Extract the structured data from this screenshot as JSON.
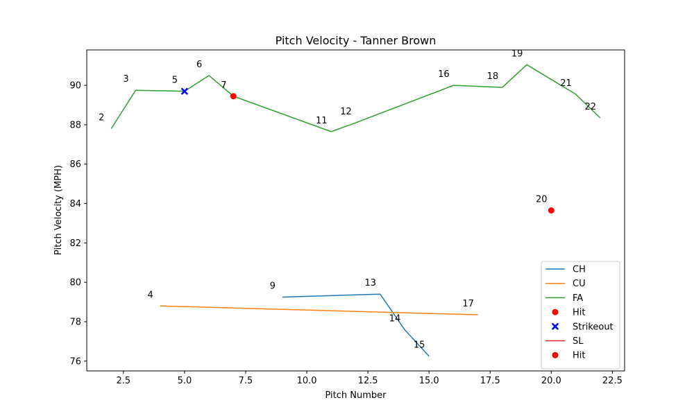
{
  "chart_data": {
    "type": "line",
    "title": "Pitch Velocity - Tanner Brown",
    "xlabel": "Pitch Number",
    "ylabel": "Pitch Velocity (MPH)",
    "xlim": [
      1.0,
      23.0
    ],
    "ylim": [
      75.5,
      91.8
    ],
    "xticks": [
      2.5,
      5.0,
      7.5,
      10.0,
      12.5,
      15.0,
      17.5,
      20.0,
      22.5
    ],
    "xtick_labels": [
      "2.5",
      "5.0",
      "7.5",
      "10.0",
      "12.5",
      "15.0",
      "17.5",
      "20.0",
      "22.5"
    ],
    "yticks": [
      76,
      78,
      80,
      82,
      84,
      86,
      88,
      90
    ],
    "ytick_labels": [
      "76",
      "78",
      "80",
      "82",
      "84",
      "86",
      "88",
      "90"
    ],
    "grid": false,
    "legend_position": "lower right",
    "series": [
      {
        "name": "CH",
        "kind": "line",
        "color": "#1f77b4",
        "x": [
          9,
          13,
          14,
          15
        ],
        "y": [
          79.25,
          79.4,
          77.6,
          76.25
        ]
      },
      {
        "name": "CU",
        "kind": "line",
        "color": "#ff7f0e",
        "x": [
          4,
          17
        ],
        "y": [
          78.8,
          78.35
        ]
      },
      {
        "name": "FA",
        "kind": "line",
        "color": "#2ca02c",
        "x": [
          2,
          3,
          5,
          6,
          7,
          11,
          12,
          16,
          18,
          19,
          21,
          22
        ],
        "y": [
          87.8,
          89.75,
          89.7,
          90.5,
          89.45,
          87.65,
          88.1,
          90.0,
          89.9,
          91.05,
          89.55,
          88.35
        ]
      },
      {
        "name": "Hit",
        "kind": "scatter",
        "marker": "circle",
        "color": "#ff0000",
        "x": [
          7
        ],
        "y": [
          89.45
        ]
      },
      {
        "name": "Strikeout",
        "kind": "scatter",
        "marker": "x",
        "color": "#0000ff",
        "x": [
          5
        ],
        "y": [
          89.7
        ]
      },
      {
        "name": "SL",
        "kind": "line",
        "color": "#d62728",
        "x": [
          20
        ],
        "y": [
          83.65
        ]
      },
      {
        "name": "Hit",
        "kind": "scatter",
        "marker": "circle",
        "color": "#ff0000",
        "x": [
          20
        ],
        "y": [
          83.65
        ]
      }
    ],
    "annotations": [
      {
        "text": "2",
        "x": 2,
        "y": 87.8
      },
      {
        "text": "3",
        "x": 3,
        "y": 89.75
      },
      {
        "text": "4",
        "x": 4,
        "y": 78.8
      },
      {
        "text": "5",
        "x": 5,
        "y": 89.7
      },
      {
        "text": "6",
        "x": 6,
        "y": 90.5
      },
      {
        "text": "7",
        "x": 7,
        "y": 89.45
      },
      {
        "text": "9",
        "x": 9,
        "y": 79.25
      },
      {
        "text": "11",
        "x": 11,
        "y": 87.65
      },
      {
        "text": "12",
        "x": 12,
        "y": 88.1
      },
      {
        "text": "13",
        "x": 13,
        "y": 79.4
      },
      {
        "text": "14",
        "x": 14,
        "y": 77.6
      },
      {
        "text": "15",
        "x": 15,
        "y": 76.25
      },
      {
        "text": "16",
        "x": 16,
        "y": 90.0
      },
      {
        "text": "17",
        "x": 17,
        "y": 78.35
      },
      {
        "text": "18",
        "x": 18,
        "y": 89.9
      },
      {
        "text": "19",
        "x": 19,
        "y": 91.05
      },
      {
        "text": "20",
        "x": 20,
        "y": 83.65
      },
      {
        "text": "21",
        "x": 21,
        "y": 89.55
      },
      {
        "text": "22",
        "x": 22,
        "y": 88.35
      }
    ],
    "legend": [
      {
        "label": "CH",
        "kind": "line",
        "color": "#1f77b4"
      },
      {
        "label": "CU",
        "kind": "line",
        "color": "#ff7f0e"
      },
      {
        "label": "FA",
        "kind": "line",
        "color": "#2ca02c"
      },
      {
        "label": "Hit",
        "kind": "circle",
        "color": "#ff0000"
      },
      {
        "label": "Strikeout",
        "kind": "x",
        "color": "#0000ff"
      },
      {
        "label": "SL",
        "kind": "line",
        "color": "#d62728"
      },
      {
        "label": "Hit",
        "kind": "circle",
        "color": "#ff0000"
      }
    ]
  }
}
